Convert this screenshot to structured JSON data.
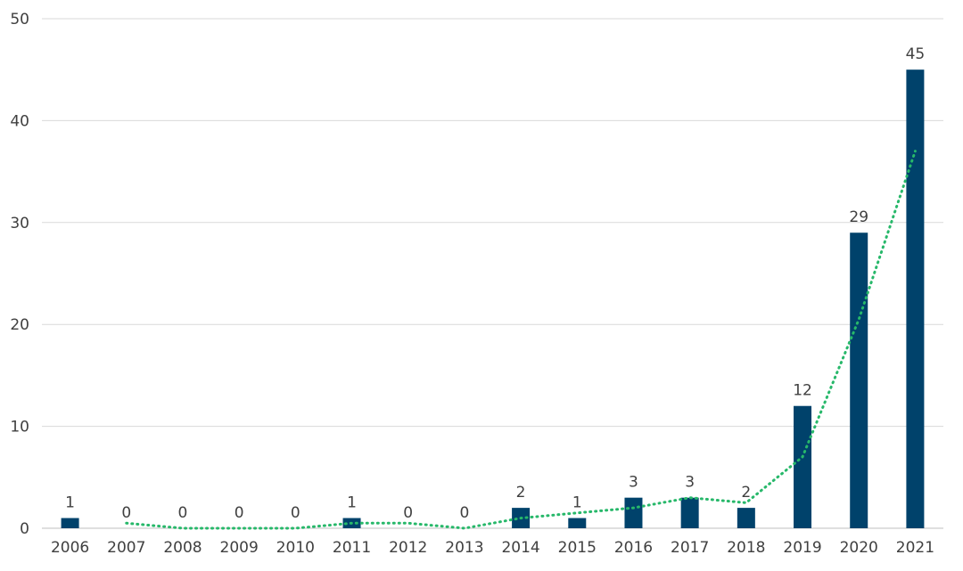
{
  "chart_data": {
    "type": "bar",
    "title": "",
    "xlabel": "",
    "ylabel": "",
    "categories": [
      "2006",
      "2007",
      "2008",
      "2009",
      "2010",
      "2011",
      "2012",
      "2013",
      "2014",
      "2015",
      "2016",
      "2017",
      "2018",
      "2019",
      "2020",
      "2021"
    ],
    "values": [
      1,
      0,
      0,
      0,
      0,
      1,
      0,
      0,
      2,
      1,
      3,
      3,
      2,
      12,
      29,
      45
    ],
    "data_labels": [
      "1",
      "0",
      "0",
      "0",
      "0",
      "1",
      "0",
      "0",
      "2",
      "1",
      "3",
      "3",
      "2",
      "12",
      "29",
      "45"
    ],
    "ylim": [
      0,
      50
    ],
    "yticks": [
      "0",
      "10",
      "20",
      "30",
      "40",
      "50"
    ],
    "grid": "horizontal",
    "legend": "none",
    "trendline": {
      "type": "moving-average-2",
      "x_start": "2007",
      "values": [
        0.5,
        0,
        0,
        0,
        0.5,
        0.5,
        0,
        1,
        1.5,
        2,
        3,
        2.5,
        7,
        20.5,
        37
      ]
    },
    "colors": {
      "bar": "#00426b",
      "trendline": "#27b86a",
      "grid": "#d9d9d9",
      "text": "#404040"
    }
  }
}
